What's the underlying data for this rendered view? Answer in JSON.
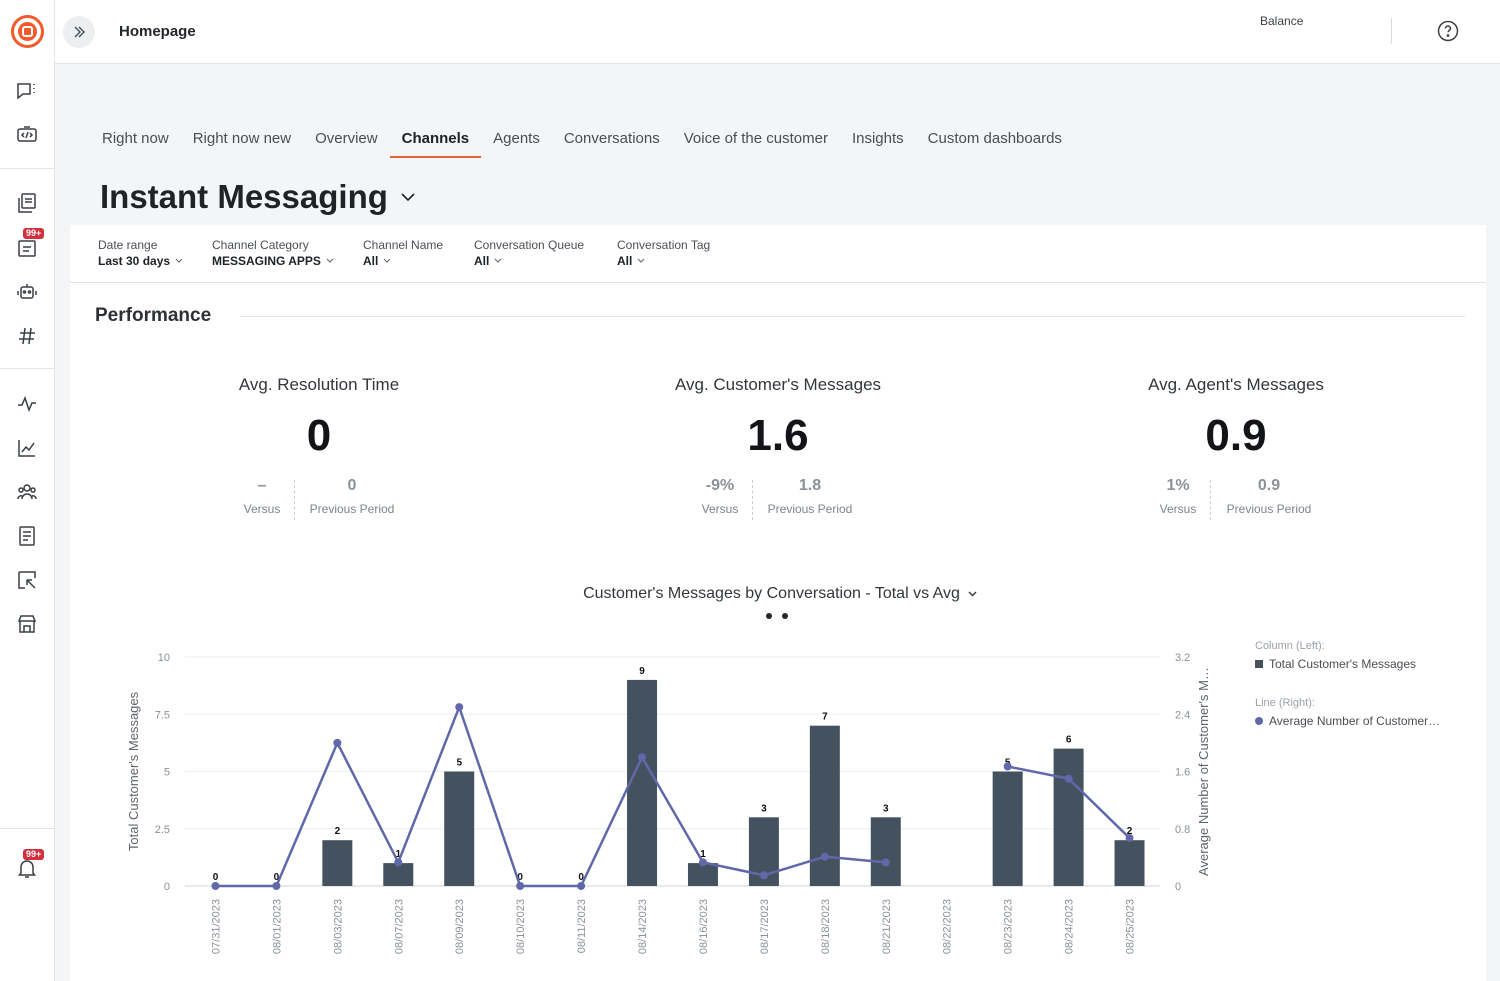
{
  "header": {
    "page": "Homepage",
    "balance_label": "Balance"
  },
  "sidebar": {
    "badge_notifications": "99+",
    "badge_tickets": "99+",
    "icons": [
      "conversations-icon",
      "code-icon",
      "knowledge-icon",
      "tickets-icon",
      "bot-icon",
      "hashtag-icon",
      "activity-icon",
      "analytics-icon",
      "contacts-icon",
      "logbook-icon",
      "campaigns-icon",
      "store-icon",
      "bell-icon"
    ]
  },
  "tabs": [
    {
      "label": "Right now"
    },
    {
      "label": "Right now new"
    },
    {
      "label": "Overview"
    },
    {
      "label": "Channels",
      "active": true
    },
    {
      "label": "Agents"
    },
    {
      "label": "Conversations"
    },
    {
      "label": "Voice of the customer"
    },
    {
      "label": "Insights"
    },
    {
      "label": "Custom dashboards"
    }
  ],
  "heading": "Instant Messaging",
  "filters": [
    {
      "label": "Date range",
      "value": "Last 30 days"
    },
    {
      "label": "Channel Category",
      "value": "MESSAGING APPS"
    },
    {
      "label": "Channel Name",
      "value": "All"
    },
    {
      "label": "Conversation Queue",
      "value": "All"
    },
    {
      "label": "Conversation Tag",
      "value": "All"
    }
  ],
  "performance": {
    "title": "Performance",
    "kpis": [
      {
        "label": "Avg. Resolution Time",
        "value": "0",
        "versus": "–",
        "versus_label": "Versus",
        "previous": "0",
        "previous_label": "Previous Period"
      },
      {
        "label": "Avg. Customer's Messages",
        "value": "1.6",
        "versus": "-9%",
        "versus_label": "Versus",
        "previous": "1.8",
        "previous_label": "Previous Period"
      },
      {
        "label": "Avg. Agent's Messages",
        "value": "0.9",
        "versus": "1%",
        "versus_label": "Versus",
        "previous": "0.9",
        "previous_label": "Previous Period"
      }
    ]
  },
  "legend": {
    "column_group": "Column (Left):",
    "column_series": "Total Customer's Messages",
    "line_group": "Line (Right):",
    "line_series": "Average Number of Customer…"
  },
  "colors": {
    "accent": "#e8603c",
    "bar": "#44525f",
    "line": "#6168aa",
    "badge": "#d32f3f"
  },
  "chart_data": {
    "type": "bar",
    "title": "Customer's Messages by Conversation - Total vs Avg",
    "categories": [
      "07/31/2023",
      "08/01/2023",
      "08/03/2023",
      "08/07/2023",
      "08/09/2023",
      "08/10/2023",
      "08/11/2023",
      "08/14/2023",
      "08/16/2023",
      "08/17/2023",
      "08/18/2023",
      "08/21/2023",
      "08/22/2023",
      "08/23/2023",
      "08/24/2023",
      "08/25/2023"
    ],
    "series": [
      {
        "name": "Total Customer's Messages",
        "type": "bar",
        "axis": "left",
        "values": [
          0,
          0,
          2,
          1,
          5,
          0,
          0,
          9,
          1,
          3,
          7,
          3,
          null,
          5,
          6,
          2
        ]
      },
      {
        "name": "Average Number of Customer…",
        "type": "line",
        "axis": "right",
        "values": [
          0,
          0,
          2.0,
          0.33,
          2.5,
          0,
          0,
          1.8,
          0.33,
          0.15,
          0.41,
          0.33,
          null,
          1.67,
          1.5,
          0.67
        ]
      }
    ],
    "ylabel": "Total Customer's Messages",
    "ylabel_right": "Average Number of Customer's M…",
    "ylim": [
      0,
      10
    ],
    "ylim_right": [
      0,
      3.2
    ],
    "yticks": [
      "0",
      "2.5",
      "5",
      "7.5",
      "10"
    ],
    "yticks_right": [
      "0",
      "0.8",
      "1.6",
      "2.4",
      "3.2"
    ],
    "grid": true,
    "legend": "right"
  }
}
